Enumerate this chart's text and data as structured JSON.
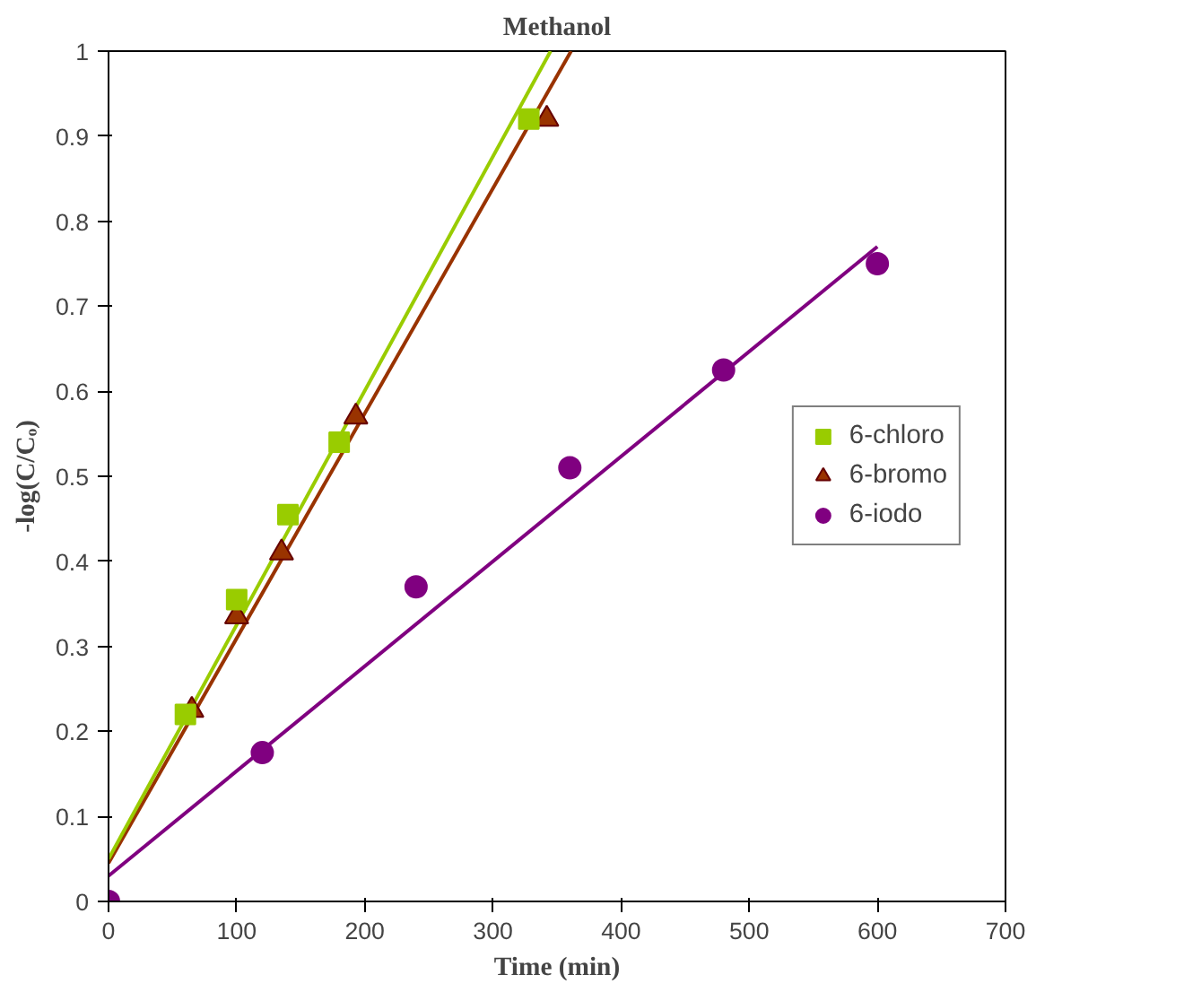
{
  "chart_data": {
    "type": "scatter",
    "title": "Methanol",
    "xlabel": "Time (min)",
    "ylabel": "-log(C/Cₒ)",
    "xlim": [
      0,
      700
    ],
    "xticks": [
      0,
      100,
      200,
      300,
      400,
      500,
      600,
      700
    ],
    "ylim": [
      0,
      1
    ],
    "yticks": [
      0,
      0.1,
      0.2,
      0.3,
      0.4,
      0.5,
      0.6,
      0.7,
      0.8,
      0.9,
      1
    ],
    "grid": false,
    "legend": "right",
    "series": [
      {
        "name": "6-chloro",
        "color": "#99cc00",
        "marker": "square",
        "x": [
          60,
          100,
          140,
          180,
          328
        ],
        "values": [
          0.22,
          0.355,
          0.455,
          0.54,
          0.92
        ]
      },
      {
        "name": "6-bromo",
        "color": "#993300",
        "marker": "triangle",
        "x": [
          65,
          100,
          135,
          193,
          342
        ],
        "values": [
          0.225,
          0.335,
          0.41,
          0.57,
          0.92
        ]
      },
      {
        "name": "6-iodo",
        "color": "#800080",
        "marker": "circle",
        "x": [
          0,
          120,
          240,
          360,
          480,
          600
        ],
        "values": [
          0,
          0.175,
          0.37,
          0.51,
          0.625,
          0.75
        ]
      },
      {
        "type": "line",
        "color": "#99cc00",
        "x": [
          0,
          345
        ],
        "values": [
          0.05,
          1
        ]
      },
      {
        "type": "line",
        "color": "#993300",
        "x": [
          0,
          361
        ],
        "values": [
          0.045,
          1
        ]
      },
      {
        "type": "line",
        "color": "#800080",
        "x": [
          0,
          600
        ],
        "values": [
          0.03,
          0.77
        ]
      }
    ]
  }
}
